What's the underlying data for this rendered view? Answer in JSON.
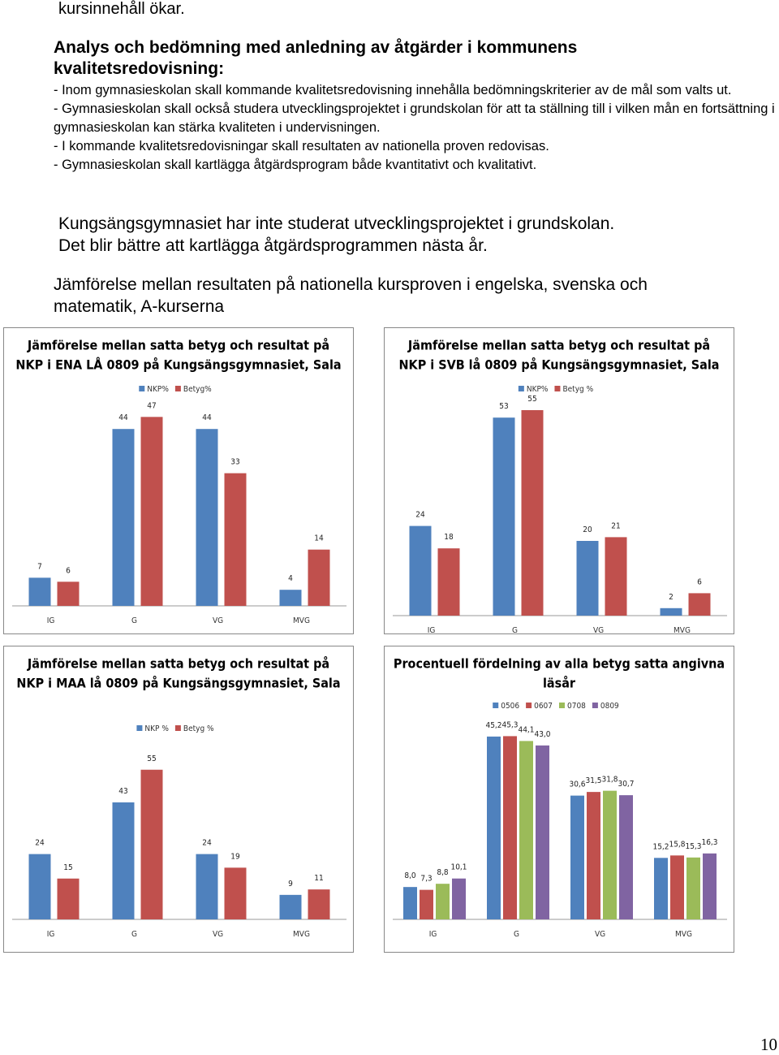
{
  "intro": "kursinnehåll ökar.",
  "heading": "Analys och bedömning med anledning av åtgärder i kommunens kvalitetsredovisning:",
  "points": [
    "- Inom gymnasieskolan skall kommande kvalitetsredovisning innehålla bedömningskriterier av de mål som valts ut.",
    "- Gymnasieskolan skall också studera utvecklingsprojektet i grundskolan för att ta ställning till i vilken mån en fortsättning i gymnasieskolan kan stärka kvaliteten i undervisningen.",
    "- I kommande kvalitetsredovisningar skall resultaten av nationella proven redovisas.",
    "- Gymnasieskolan skall kartlägga åtgärdsprogram både kvantitativt och kvalitativt."
  ],
  "remarks": [
    "Kungsängsgymnasiet har inte studerat utvecklingsprojektet i grundskolan.",
    "Det blir bättre att kartlägga åtgärdsprogrammen nästa år."
  ],
  "section_title": "Jämförelse mellan resultaten på nationella kursproven i engelska, svenska och matematik, A-kurserna",
  "page_number": "10",
  "chart_data": [
    {
      "type": "bar",
      "title": [
        "Jämförelse mellan satta betyg och resultat på",
        "NKP i ENA LÅ 0809 på Kungsängsgymnasiet, Sala"
      ],
      "categories": [
        "IG",
        "G",
        "VG",
        "MVG"
      ],
      "series": [
        {
          "name": "NKP%",
          "color": "#4f81bd",
          "values": [
            7,
            44,
            44,
            4
          ]
        },
        {
          "name": "Betyg%",
          "color": "#c0504d",
          "values": [
            6,
            47,
            33,
            14
          ]
        }
      ]
    },
    {
      "type": "bar",
      "title": [
        "Jämförelse mellan satta betyg och resultat på",
        "NKP i SVB lå 0809 på Kungsängsgymnasiet, Sala"
      ],
      "categories": [
        "IG",
        "G",
        "VG",
        "MVG"
      ],
      "series": [
        {
          "name": "NKP%",
          "color": "#4f81bd",
          "values": [
            24,
            53,
            20,
            2
          ]
        },
        {
          "name": "Betyg %",
          "color": "#c0504d",
          "values": [
            18,
            55,
            21,
            6
          ]
        }
      ]
    },
    {
      "type": "bar",
      "title": [
        "Jämförelse mellan satta betyg och resultat på",
        "NKP i MAA  lå 0809 på Kungsängsgymnasiet, Sala"
      ],
      "categories": [
        "IG",
        "G",
        "VG",
        "MVG"
      ],
      "series": [
        {
          "name": "NKP %",
          "color": "#4f81bd",
          "values": [
            24,
            43,
            24,
            9
          ]
        },
        {
          "name": "Betyg %",
          "color": "#c0504d",
          "values": [
            15,
            55,
            19,
            11
          ]
        }
      ]
    },
    {
      "type": "bar",
      "title": [
        "Procentuell fördelning av alla betyg satta angivna",
        "läsår"
      ],
      "categories": [
        "IG",
        "G",
        "VG",
        "MVG"
      ],
      "series": [
        {
          "name": "0506",
          "color": "#4f81bd",
          "values": [
            8.0,
            45.2,
            30.6,
            15.2
          ],
          "value_labels": [
            "8,0",
            "45,2",
            "30,6",
            "15,2"
          ]
        },
        {
          "name": "0607",
          "color": "#c0504d",
          "values": [
            7.3,
            45.3,
            31.5,
            15.8
          ],
          "value_labels": [
            "7,3",
            "45,3",
            "31,5",
            "15,8"
          ]
        },
        {
          "name": "0708",
          "color": "#9bbb59",
          "values": [
            8.8,
            44.1,
            31.8,
            15.3
          ],
          "value_labels": [
            "8,8",
            "44,1",
            "31,8",
            "15,3"
          ]
        },
        {
          "name": "0809",
          "color": "#8064a2",
          "values": [
            10.1,
            43.0,
            30.7,
            16.3
          ],
          "value_labels": [
            "10,1",
            "43,0",
            "30,7",
            "16,3"
          ]
        }
      ]
    }
  ]
}
